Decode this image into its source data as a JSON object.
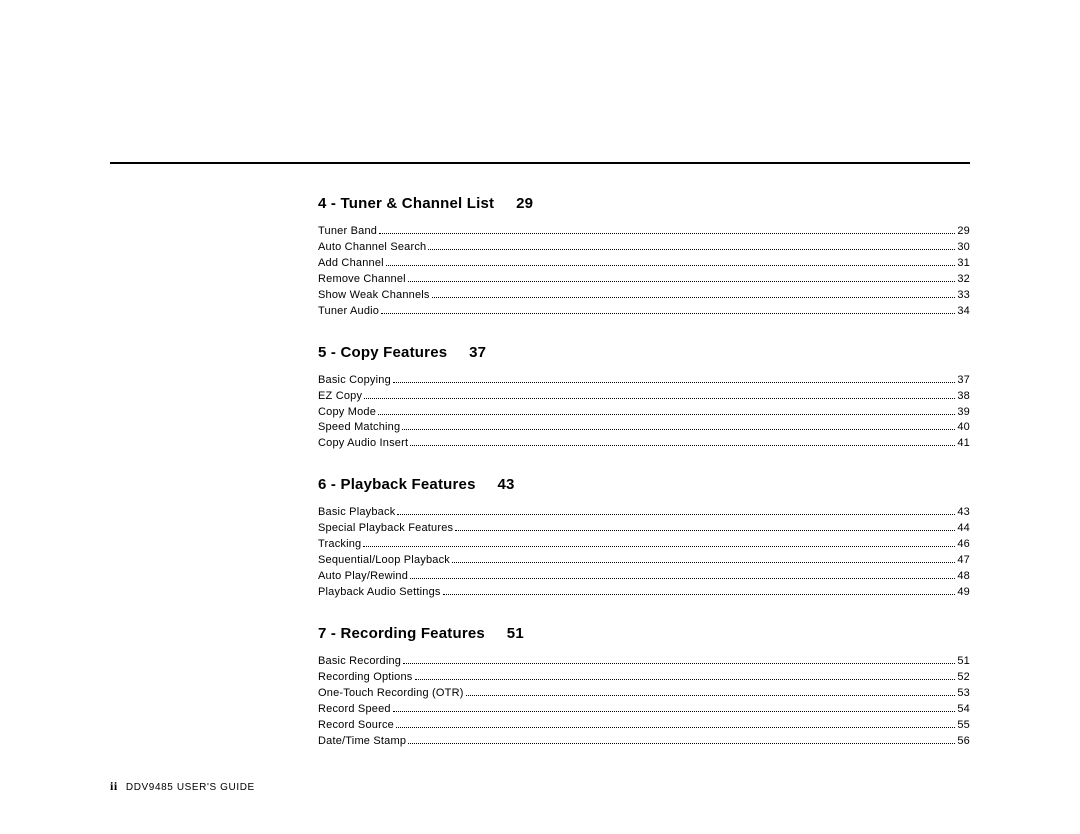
{
  "footer": {
    "page_label": "ii",
    "doc_title": "DDV9485 USER'S GUIDE"
  },
  "sections": [
    {
      "number": "4",
      "title": "Tuner & Channel List",
      "page": "29",
      "entries": [
        {
          "label": "Tuner Band",
          "page": "29"
        },
        {
          "label": "Auto Channel Search",
          "page": "30"
        },
        {
          "label": "Add Channel",
          "page": "31"
        },
        {
          "label": "Remove Channel",
          "page": "32"
        },
        {
          "label": "Show Weak Channels",
          "page": "33"
        },
        {
          "label": "Tuner Audio",
          "page": "34"
        }
      ]
    },
    {
      "number": "5",
      "title": "Copy Features",
      "page": "37",
      "entries": [
        {
          "label": "Basic Copying",
          "page": "37"
        },
        {
          "label": "EZ Copy",
          "page": "38"
        },
        {
          "label": "Copy Mode",
          "page": "39"
        },
        {
          "label": "Speed Matching",
          "page": "40"
        },
        {
          "label": "Copy Audio Insert",
          "page": "41"
        }
      ]
    },
    {
      "number": "6",
      "title": "Playback Features",
      "page": "43",
      "entries": [
        {
          "label": "Basic Playback",
          "page": "43"
        },
        {
          "label": "Special Playback Features",
          "page": "44"
        },
        {
          "label": "Tracking",
          "page": "46"
        },
        {
          "label": "Sequential/Loop Playback",
          "page": "47"
        },
        {
          "label": "Auto Play/Rewind",
          "page": "48"
        },
        {
          "label": "Playback Audio Settings",
          "page": "49"
        }
      ]
    },
    {
      "number": "7",
      "title": "Recording Features",
      "page": "51",
      "entries": [
        {
          "label": "Basic Recording",
          "page": "51"
        },
        {
          "label": "Recording Options",
          "page": "52"
        },
        {
          "label": "One-Touch Recording (OTR)",
          "page": "53"
        },
        {
          "label": "Record Speed",
          "page": "54"
        },
        {
          "label": "Record Source",
          "page": "55"
        },
        {
          "label": "Date/Time Stamp",
          "page": "56"
        }
      ]
    }
  ]
}
